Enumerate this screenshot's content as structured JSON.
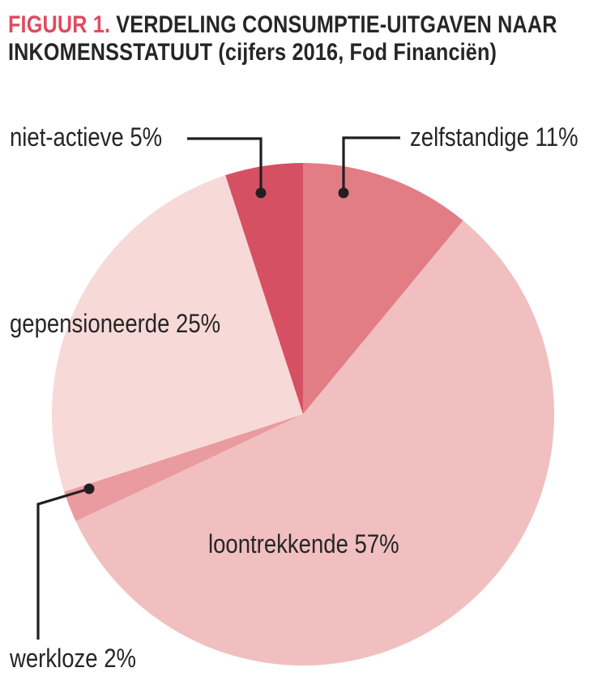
{
  "title": {
    "prefix": "FIGUUR 1.",
    "line1_rest": "VERDELING CONSUMPTIE-UITGAVEN NAAR",
    "line2": "INKOMENSSTATUUT (cijfers 2016, Fod Financiën)",
    "accent_color": "#e04a5f",
    "text_color": "#262626"
  },
  "chart_data": {
    "type": "pie",
    "title": "FIGUUR 1. VERDELING CONSUMPTIE-UITGAVEN NAAR INKOMENSSTATUUT (cijfers 2016, Fod Financiën)",
    "source_note": "cijfers 2016, Fod Financiën",
    "start_angle": "12 o'clock",
    "direction": "clockwise",
    "units": "percent",
    "slices": [
      {
        "name": "zelfstandige",
        "value": 11,
        "label": "zelfstandige 11%",
        "color": "#e27d85"
      },
      {
        "name": "loontrekkende",
        "value": 57,
        "label": "loontrekkende 57%",
        "color": "#f1bfc0"
      },
      {
        "name": "werkloze",
        "value": 2,
        "label": "werkloze 2%",
        "color": "#e99ba0"
      },
      {
        "name": "gepensioneerde",
        "value": 25,
        "label": "gepensioneerde 25%",
        "color": "#f7d9d8"
      },
      {
        "name": "niet-actieve",
        "value": 5,
        "label": "niet-actieve 5%",
        "color": "#d65064"
      }
    ],
    "leader_line_color": "#231f20",
    "legend_position": "callout-labels"
  }
}
